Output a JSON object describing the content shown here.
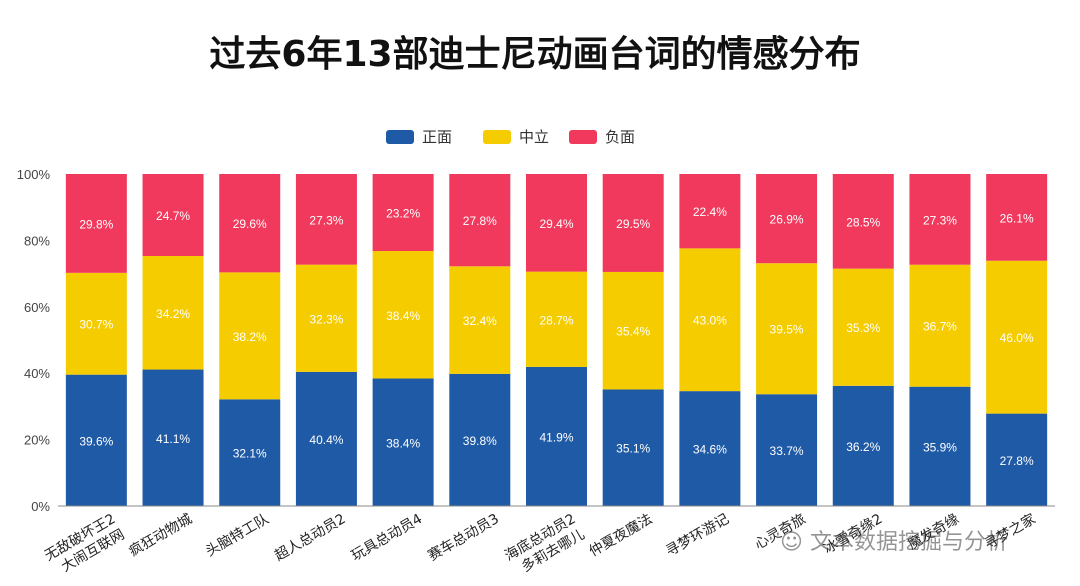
{
  "chart_data": {
    "type": "bar",
    "stacked": true,
    "title": "过去6年13部迪士尼动画台词的情感分布",
    "categories": [
      [
        "无敌破坏王2",
        "大闹互联网"
      ],
      [
        "疯狂动物城"
      ],
      [
        "头脑特工队"
      ],
      [
        "超人总动员2"
      ],
      [
        "玩具总动员4"
      ],
      [
        "赛车总动员3"
      ],
      [
        "海底总动员2",
        "多莉去哪儿"
      ],
      [
        "仲夏夜魔法"
      ],
      [
        "寻梦环游记"
      ],
      [
        "心灵奇旅"
      ],
      [
        "冰雪奇缘2"
      ],
      [
        "魔发奇缘"
      ],
      [
        "寻梦之家"
      ]
    ],
    "series": [
      {
        "name": "正面",
        "color": "#1f5aa6",
        "values": [
          39.6,
          41.1,
          32.1,
          40.4,
          38.4,
          39.8,
          41.9,
          35.1,
          34.6,
          33.7,
          36.2,
          35.9,
          27.8
        ]
      },
      {
        "name": "中立",
        "color": "#f5cc00",
        "values": [
          30.7,
          34.2,
          38.2,
          32.3,
          38.4,
          32.4,
          28.7,
          35.4,
          43.0,
          39.5,
          35.3,
          36.7,
          46.0
        ]
      },
      {
        "name": "负面",
        "color": "#f0395c",
        "values": [
          29.8,
          24.7,
          29.6,
          27.3,
          23.2,
          27.8,
          29.4,
          29.5,
          22.4,
          26.9,
          28.5,
          27.3,
          26.1
        ]
      }
    ],
    "ylim": [
      0,
      100
    ],
    "yticks": [
      "0%",
      "20%",
      "40%",
      "60%",
      "80%",
      "100%"
    ],
    "legend_position": "top-center",
    "grid": false
  },
  "watermark": "文本数据挖掘与分析"
}
